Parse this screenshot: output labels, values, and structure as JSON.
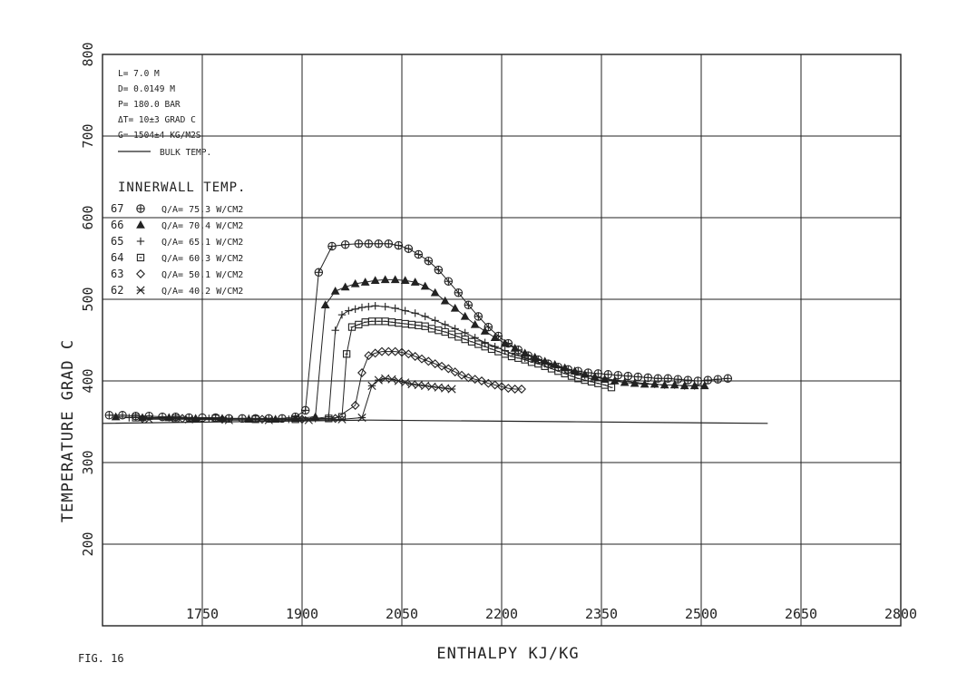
{
  "figure_label": "FIG. 16",
  "chart_data": {
    "type": "line",
    "xlabel": "ENTHALPY KJ/KG",
    "ylabel": "TEMPERATURE GRAD C",
    "xlim": [
      1600,
      2800
    ],
    "ylim": [
      100,
      800
    ],
    "x_ticks": [
      1750,
      1900,
      2050,
      2200,
      2350,
      2500,
      2650,
      2800
    ],
    "y_ticks": [
      200,
      300,
      400,
      500,
      600,
      700,
      800
    ],
    "grid": true,
    "parameters": [
      "L= 7.0 M",
      "D= 0.0149 M",
      "P= 180.0 BAR",
      "ΔT= 10±3 GRAD C",
      "G= 1504±4 KG/M2S"
    ],
    "bulk_label": "BULK TEMP.",
    "legend_title": "INNERWALL TEMP.",
    "bulk_temp": {
      "x": [
        1600,
        2000,
        2300,
        2600
      ],
      "y": [
        348,
        352,
        350,
        348
      ]
    },
    "series": [
      {
        "name": "67",
        "label": "Q/A= 75.3 W/CM2",
        "marker": "circle-plus",
        "x": [
          1610,
          1630,
          1650,
          1670,
          1690,
          1710,
          1730,
          1750,
          1770,
          1790,
          1810,
          1830,
          1850,
          1870,
          1890,
          1905,
          1925,
          1945,
          1965,
          1985,
          2000,
          2015,
          2030,
          2045,
          2060,
          2075,
          2090,
          2105,
          2120,
          2135,
          2150,
          2165,
          2180,
          2195,
          2210,
          2225,
          2240,
          2255,
          2270,
          2285,
          2300,
          2315,
          2330,
          2345,
          2360,
          2375,
          2390,
          2405,
          2420,
          2435,
          2450,
          2465,
          2480,
          2495,
          2510,
          2525,
          2540
        ],
        "y": [
          358,
          358,
          357,
          357,
          356,
          356,
          355,
          355,
          355,
          354,
          354,
          354,
          354,
          354,
          356,
          364,
          533,
          565,
          567,
          568,
          568,
          568,
          568,
          566,
          562,
          555,
          547,
          536,
          522,
          508,
          493,
          479,
          466,
          455,
          446,
          438,
          431,
          426,
          421,
          417,
          414,
          412,
          410,
          409,
          408,
          407,
          406,
          405,
          404,
          403,
          403,
          402,
          401,
          400,
          401,
          402,
          403
        ]
      },
      {
        "name": "66",
        "label": "Q/A= 70.4 W/CM2",
        "marker": "triangle",
        "x": [
          1620,
          1660,
          1700,
          1740,
          1780,
          1820,
          1860,
          1890,
          1920,
          1935,
          1950,
          1965,
          1980,
          1995,
          2010,
          2025,
          2040,
          2055,
          2070,
          2085,
          2100,
          2115,
          2130,
          2145,
          2160,
          2175,
          2190,
          2205,
          2220,
          2235,
          2250,
          2265,
          2280,
          2295,
          2310,
          2325,
          2340,
          2355,
          2370,
          2385,
          2400,
          2415,
          2430,
          2445,
          2460,
          2475,
          2490,
          2505
        ],
        "y": [
          356,
          355,
          355,
          354,
          354,
          353,
          353,
          354,
          356,
          493,
          510,
          515,
          519,
          521,
          523,
          524,
          524,
          523,
          521,
          516,
          508,
          498,
          489,
          479,
          469,
          461,
          453,
          446,
          440,
          434,
          429,
          424,
          420,
          416,
          412,
          408,
          405,
          402,
          400,
          398,
          397,
          396,
          396,
          395,
          395,
          394,
          394,
          394
        ]
      },
      {
        "name": "65",
        "label": "Q/A= 65.1 W/CM2",
        "marker": "plus",
        "x": [
          1640,
          1700,
          1760,
          1820,
          1880,
          1920,
          1940,
          1950,
          1960,
          1970,
          1980,
          1990,
          2000,
          2010,
          2025,
          2040,
          2055,
          2070,
          2085,
          2100,
          2115,
          2130,
          2145,
          2160,
          2175,
          2190,
          2205,
          2220,
          2235,
          2250,
          2265,
          2280,
          2295,
          2310,
          2325,
          2340,
          2355,
          2370,
          2385,
          2400,
          2415,
          2430,
          2445,
          2460,
          2475,
          2490
        ],
        "y": [
          355,
          355,
          354,
          354,
          353,
          354,
          356,
          462,
          481,
          486,
          488,
          490,
          491,
          492,
          491,
          489,
          486,
          483,
          479,
          474,
          469,
          464,
          459,
          453,
          447,
          442,
          437,
          432,
          428,
          424,
          421,
          418,
          414,
          411,
          407,
          405,
          403,
          401,
          400,
          398,
          397,
          396,
          395,
          395,
          394,
          394
        ]
      },
      {
        "name": "64",
        "label": "Q/A= 60.3 W/CM2",
        "marker": "square",
        "x": [
          1650,
          1710,
          1770,
          1830,
          1890,
          1940,
          1960,
          1967,
          1975,
          1985,
          1995,
          2005,
          2015,
          2025,
          2035,
          2045,
          2055,
          2065,
          2075,
          2085,
          2095,
          2105,
          2115,
          2125,
          2135,
          2145,
          2155,
          2165,
          2175,
          2185,
          2195,
          2205,
          2215,
          2225,
          2235,
          2245,
          2255,
          2265,
          2275,
          2285,
          2295,
          2305,
          2315,
          2325,
          2335,
          2345,
          2355,
          2365
        ],
        "y": [
          355,
          354,
          354,
          353,
          353,
          354,
          356,
          433,
          466,
          469,
          472,
          473,
          473,
          473,
          472,
          471,
          470,
          469,
          468,
          467,
          464,
          462,
          460,
          457,
          454,
          451,
          448,
          445,
          442,
          439,
          436,
          433,
          430,
          428,
          426,
          423,
          421,
          418,
          415,
          412,
          409,
          406,
          403,
          401,
          399,
          397,
          395,
          392
        ]
      },
      {
        "name": "63",
        "label": "Q/A= 50.1 W/CM2",
        "marker": "diamond",
        "x": [
          1660,
          1720,
          1780,
          1840,
          1900,
          1950,
          1980,
          1990,
          2000,
          2010,
          2020,
          2030,
          2040,
          2050,
          2060,
          2070,
          2080,
          2090,
          2100,
          2110,
          2120,
          2130,
          2140,
          2150,
          2160,
          2170,
          2180,
          2190,
          2200,
          2210,
          2220,
          2230
        ],
        "y": [
          354,
          354,
          353,
          353,
          353,
          354,
          370,
          410,
          431,
          434,
          436,
          436,
          436,
          435,
          433,
          430,
          427,
          424,
          421,
          418,
          415,
          411,
          407,
          404,
          402,
          400,
          397,
          395,
          393,
          391,
          390,
          390
        ]
      },
      {
        "name": "62",
        "label": "Q/A= 40.2 W/CM2",
        "marker": "asterisk",
        "x": [
          1670,
          1730,
          1790,
          1850,
          1910,
          1960,
          1990,
          2005,
          2015,
          2025,
          2035,
          2045,
          2055,
          2065,
          2075,
          2085,
          2095,
          2105,
          2115,
          2125
        ],
        "y": [
          353,
          353,
          352,
          352,
          352,
          353,
          355,
          394,
          401,
          403,
          402,
          400,
          398,
          396,
          395,
          394,
          393,
          392,
          391,
          390
        ]
      }
    ]
  }
}
